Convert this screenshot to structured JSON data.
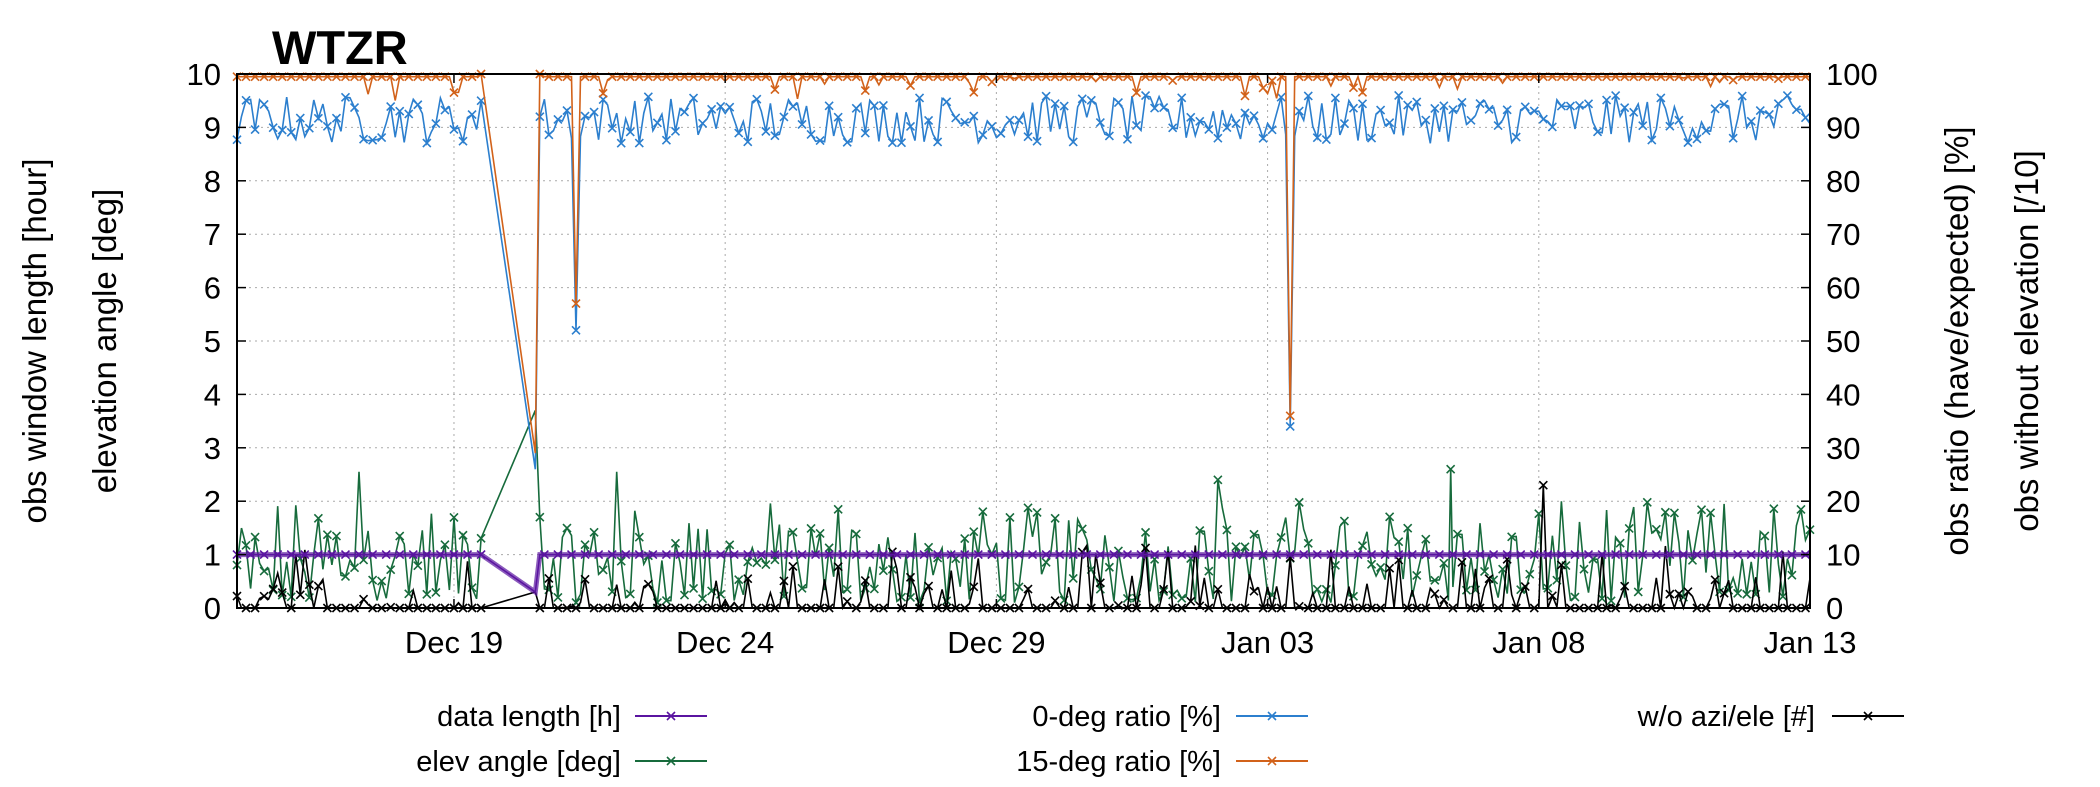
{
  "chart_data": {
    "type": "line",
    "title": "WTZR",
    "x_axis": {
      "type": "date",
      "range": [
        "2023-12-15",
        "2024-01-13"
      ],
      "ticks": [
        "Dec 19",
        "Dec 24",
        "Dec 29",
        "Jan 03",
        "Jan 08",
        "Jan 13"
      ],
      "tick_dates": [
        "2023-12-19",
        "2023-12-24",
        "2023-12-29",
        "2024-01-03",
        "2024-01-08",
        "2024-01-13"
      ]
    },
    "y_left": {
      "labels": [
        "obs window length [hour]",
        "elevation angle [deg]"
      ],
      "range": [
        0,
        10
      ],
      "ticks": [
        "0",
        "1",
        "2",
        "3",
        "4",
        "5",
        "6",
        "7",
        "8",
        "9",
        "10"
      ]
    },
    "y_right": {
      "labels": [
        "obs ratio (have/expected) [%]",
        "obs without elevation [/10]"
      ],
      "range": [
        0,
        100
      ],
      "ticks": [
        "0",
        "10",
        "20",
        "30",
        "40",
        "50",
        "60",
        "70",
        "80",
        "90",
        "100"
      ]
    },
    "grid": true,
    "legend_position": "bottom",
    "gap": {
      "start": "2023-12-19 12:00",
      "end": "2023-12-20 12:00"
    },
    "series": [
      {
        "name": "data length  [h]",
        "axis": "left",
        "color": "#5a14a0",
        "typical_value": 1.0,
        "points": [
          {
            "date": "2023-12-19 12:00",
            "value": 1.0
          },
          {
            "date": "2023-12-20 12:00",
            "value": 0.3
          }
        ]
      },
      {
        "name": "elev angle [deg]",
        "axis": "left",
        "color": "#176b3c",
        "typical_range": [
          0.1,
          2.0
        ],
        "points": [
          {
            "date": "2023-12-17 06:00",
            "value": 2.55
          },
          {
            "date": "2023-12-20 12:00",
            "value": 3.7
          },
          {
            "date": "2023-12-20 14:00",
            "value": 1.7
          },
          {
            "date": "2023-12-22 00:00",
            "value": 2.55
          },
          {
            "date": "2024-01-02 02:00",
            "value": 2.4
          },
          {
            "date": "2024-01-06 09:00",
            "value": 2.6
          }
        ]
      },
      {
        "name": "0-deg ratio [%]",
        "axis": "right",
        "color": "#2c7fce",
        "typical_range": [
          87,
          96
        ],
        "points": [
          {
            "date": "2023-12-19 12:00",
            "value": 95
          },
          {
            "date": "2023-12-20 12:00",
            "value": 26
          },
          {
            "date": "2023-12-20 14:00",
            "value": 92
          },
          {
            "date": "2023-12-21 06:00",
            "value": 52
          },
          {
            "date": "2024-01-03 10:00",
            "value": 34
          }
        ]
      },
      {
        "name": "15-deg ratio [%]",
        "axis": "right",
        "color": "#d2621a",
        "typical_range": [
          97,
          100
        ],
        "points": [
          {
            "date": "2023-12-19 12:00",
            "value": 100
          },
          {
            "date": "2023-12-20 12:00",
            "value": 29
          },
          {
            "date": "2023-12-20 14:00",
            "value": 100
          },
          {
            "date": "2023-12-21 06:00",
            "value": 57
          },
          {
            "date": "2024-01-03 10:00",
            "value": 36
          }
        ]
      },
      {
        "name": "w/o azi/ele [#]",
        "axis": "right",
        "color": "#000000",
        "typical_range": [
          0,
          12
        ],
        "points": [
          {
            "date": "2023-12-19 12:00",
            "value": 0
          },
          {
            "date": "2023-12-20 12:00",
            "value": 3
          },
          {
            "date": "2024-01-08 02:00",
            "value": 23
          }
        ]
      }
    ]
  }
}
